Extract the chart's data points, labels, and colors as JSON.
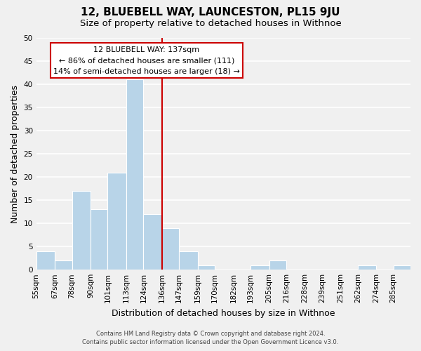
{
  "title": "12, BLUEBELL WAY, LAUNCESTON, PL15 9JU",
  "subtitle": "Size of property relative to detached houses in Withnoe",
  "xlabel": "Distribution of detached houses by size in Withnoe",
  "ylabel": "Number of detached properties",
  "bar_edges": [
    55,
    67,
    78,
    90,
    101,
    113,
    124,
    136,
    147,
    159,
    170,
    182,
    193,
    205,
    216,
    228,
    239,
    251,
    262,
    274,
    285,
    296
  ],
  "bar_heights": [
    4,
    2,
    17,
    13,
    21,
    41,
    12,
    9,
    4,
    1,
    0,
    0,
    1,
    2,
    0,
    0,
    0,
    0,
    1,
    0,
    1
  ],
  "bar_color": "#b8d4e8",
  "reference_line_x": 136,
  "reference_line_color": "#cc0000",
  "ylim": [
    0,
    50
  ],
  "yticks": [
    0,
    5,
    10,
    15,
    20,
    25,
    30,
    35,
    40,
    45,
    50
  ],
  "tick_labels": [
    "55sqm",
    "67sqm",
    "78sqm",
    "90sqm",
    "101sqm",
    "113sqm",
    "124sqm",
    "136sqm",
    "147sqm",
    "159sqm",
    "170sqm",
    "182sqm",
    "193sqm",
    "205sqm",
    "216sqm",
    "228sqm",
    "239sqm",
    "251sqm",
    "262sqm",
    "274sqm",
    "285sqm"
  ],
  "annotation_title": "12 BLUEBELL WAY: 137sqm",
  "annotation_line1": "← 86% of detached houses are smaller (111)",
  "annotation_line2": "14% of semi-detached houses are larger (18) →",
  "footer_line1": "Contains HM Land Registry data © Crown copyright and database right 2024.",
  "footer_line2": "Contains public sector information licensed under the Open Government Licence v3.0.",
  "background_color": "#f0f0f0",
  "grid_color": "#ffffff",
  "title_fontsize": 11,
  "subtitle_fontsize": 9.5,
  "axis_label_fontsize": 9,
  "tick_fontsize": 7.5,
  "annotation_fontsize": 8
}
